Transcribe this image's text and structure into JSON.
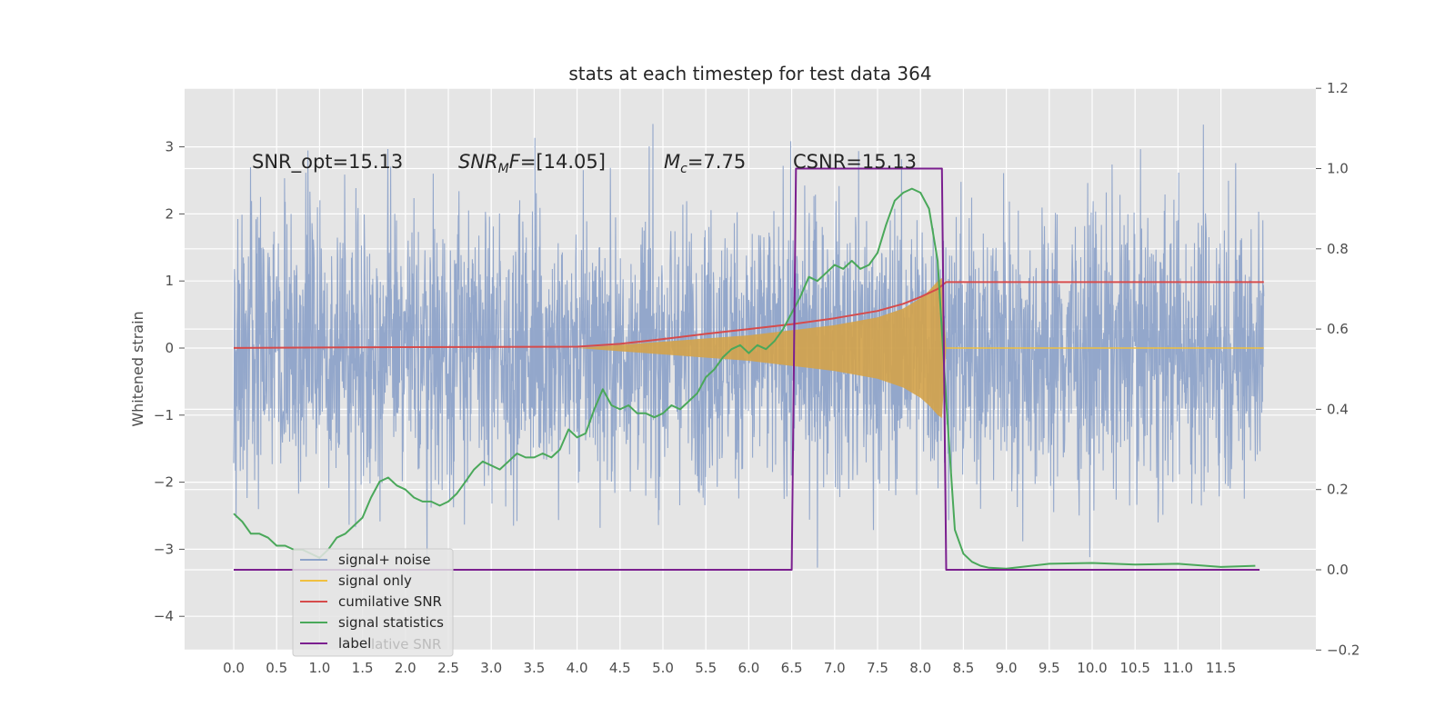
{
  "chart_data": {
    "type": "line",
    "title": "stats at each timestep for test data 364",
    "ylabel": "Whitened strain",
    "xlabel": "",
    "xlim": [
      -0.5,
      12.5
    ],
    "ylim": [
      -4.5,
      3.8
    ],
    "y2lim": [
      -0.2,
      1.2
    ],
    "grid": true,
    "legend_position": "lower-left",
    "x_ticks": [
      "0.0",
      "0.5",
      "1.0",
      "1.5",
      "2.0",
      "2.5",
      "3.0",
      "3.5",
      "4.0",
      "4.5",
      "5.0",
      "5.5",
      "6.0",
      "6.5",
      "7.0",
      "7.5",
      "8.0",
      "8.5",
      "9.0",
      "9.5",
      "10.0",
      "10.5",
      "11.0",
      "11.5"
    ],
    "y_ticks": [
      "3",
      "2",
      "1",
      "0",
      "−1",
      "−2",
      "−3",
      "−4"
    ],
    "y2_ticks": [
      "1.2",
      "1.0",
      "0.8",
      "0.6",
      "0.4",
      "0.2",
      "0.0",
      "−0.2"
    ],
    "annotations": {
      "snr_opt": "SNR_opt=15.13",
      "snr_mf_main": "SNR",
      "snr_mf_sub": "M",
      "snr_mf_rest": "F=[14.05]",
      "mc_main": "M",
      "mc_sub": "c",
      "mc_rest": "=7.75",
      "csnr": "CSNR=15.13"
    },
    "legend": [
      {
        "label": "signal+ noise",
        "color": "#8ea3c9"
      },
      {
        "label": "signal only",
        "color": "#f0c040"
      },
      {
        "label": "cumilative SNR",
        "color": "#d64b4b"
      },
      {
        "label": "signal statistics",
        "color": "#4aa85a"
      },
      {
        "label": "label",
        "color": "#7b1f8f"
      }
    ],
    "legend_ghost_text": "lative SNR",
    "series": [
      {
        "name": "signal+ noise",
        "axis": "left",
        "color": "#8ea3c9",
        "description": "noisy whitened strain, approx amplitude ±2 with peaks near ±3.4, t from 0 to 12"
      },
      {
        "name": "signal only",
        "axis": "left",
        "color": "#d4a34a",
        "envelope": {
          "x": [
            0.0,
            4.0,
            5.0,
            6.0,
            6.5,
            7.0,
            7.5,
            7.8,
            8.0,
            8.1,
            8.2,
            8.25,
            8.3,
            12.0
          ],
          "y": [
            0,
            0,
            0.1,
            0.2,
            0.28,
            0.36,
            0.48,
            0.62,
            0.78,
            0.9,
            1.05,
            1.1,
            0,
            0
          ]
        }
      },
      {
        "name": "cumilative SNR",
        "axis": "right",
        "color": "#d64b4b",
        "x": [
          0.0,
          2.0,
          4.0,
          4.5,
          5.0,
          5.5,
          6.0,
          6.5,
          7.0,
          7.5,
          7.8,
          8.0,
          8.2,
          8.3,
          12.0
        ],
        "y": [
          0.553,
          0.555,
          0.556,
          0.563,
          0.575,
          0.588,
          0.6,
          0.612,
          0.627,
          0.645,
          0.663,
          0.68,
          0.7,
          0.717,
          0.717
        ]
      },
      {
        "name": "signal statistics",
        "axis": "right",
        "color": "#4aa85a",
        "x": [
          0.0,
          0.1,
          0.2,
          0.3,
          0.4,
          0.5,
          0.6,
          0.7,
          0.8,
          0.9,
          1.0,
          1.1,
          1.2,
          1.3,
          1.4,
          1.5,
          1.6,
          1.7,
          1.8,
          1.9,
          2.0,
          2.1,
          2.2,
          2.3,
          2.4,
          2.5,
          2.6,
          2.7,
          2.8,
          2.9,
          3.0,
          3.1,
          3.2,
          3.3,
          3.4,
          3.5,
          3.6,
          3.7,
          3.8,
          3.9,
          4.0,
          4.1,
          4.2,
          4.3,
          4.4,
          4.5,
          4.6,
          4.7,
          4.8,
          4.9,
          5.0,
          5.1,
          5.2,
          5.3,
          5.4,
          5.5,
          5.6,
          5.7,
          5.8,
          5.9,
          6.0,
          6.1,
          6.2,
          6.3,
          6.4,
          6.5,
          6.6,
          6.7,
          6.8,
          6.9,
          7.0,
          7.1,
          7.2,
          7.3,
          7.4,
          7.5,
          7.6,
          7.7,
          7.8,
          7.9,
          8.0,
          8.1,
          8.2,
          8.3,
          8.4,
          8.5,
          8.6,
          8.7,
          8.8,
          9.0,
          9.5,
          10.0,
          10.5,
          11.0,
          11.5,
          11.9
        ],
        "y": [
          0.14,
          0.12,
          0.09,
          0.09,
          0.08,
          0.06,
          0.06,
          0.05,
          0.05,
          0.04,
          0.03,
          0.05,
          0.08,
          0.09,
          0.11,
          0.13,
          0.18,
          0.22,
          0.23,
          0.21,
          0.2,
          0.18,
          0.17,
          0.17,
          0.16,
          0.17,
          0.19,
          0.22,
          0.25,
          0.27,
          0.26,
          0.25,
          0.27,
          0.29,
          0.28,
          0.28,
          0.29,
          0.28,
          0.3,
          0.35,
          0.33,
          0.34,
          0.4,
          0.45,
          0.41,
          0.4,
          0.41,
          0.39,
          0.39,
          0.38,
          0.39,
          0.41,
          0.4,
          0.42,
          0.44,
          0.48,
          0.5,
          0.53,
          0.55,
          0.56,
          0.54,
          0.56,
          0.55,
          0.57,
          0.6,
          0.64,
          0.68,
          0.73,
          0.72,
          0.74,
          0.76,
          0.75,
          0.77,
          0.75,
          0.76,
          0.79,
          0.86,
          0.92,
          0.94,
          0.95,
          0.94,
          0.9,
          0.77,
          0.42,
          0.1,
          0.04,
          0.02,
          0.01,
          0.005,
          0.003,
          0.015,
          0.017,
          0.013,
          0.015,
          0.007,
          0.01
        ]
      },
      {
        "name": "label",
        "axis": "right",
        "color": "#7b1f8f",
        "x": [
          0.0,
          6.5,
          6.55,
          8.25,
          8.3,
          11.95
        ],
        "y": [
          0,
          0,
          1,
          1,
          0,
          0
        ]
      }
    ]
  }
}
